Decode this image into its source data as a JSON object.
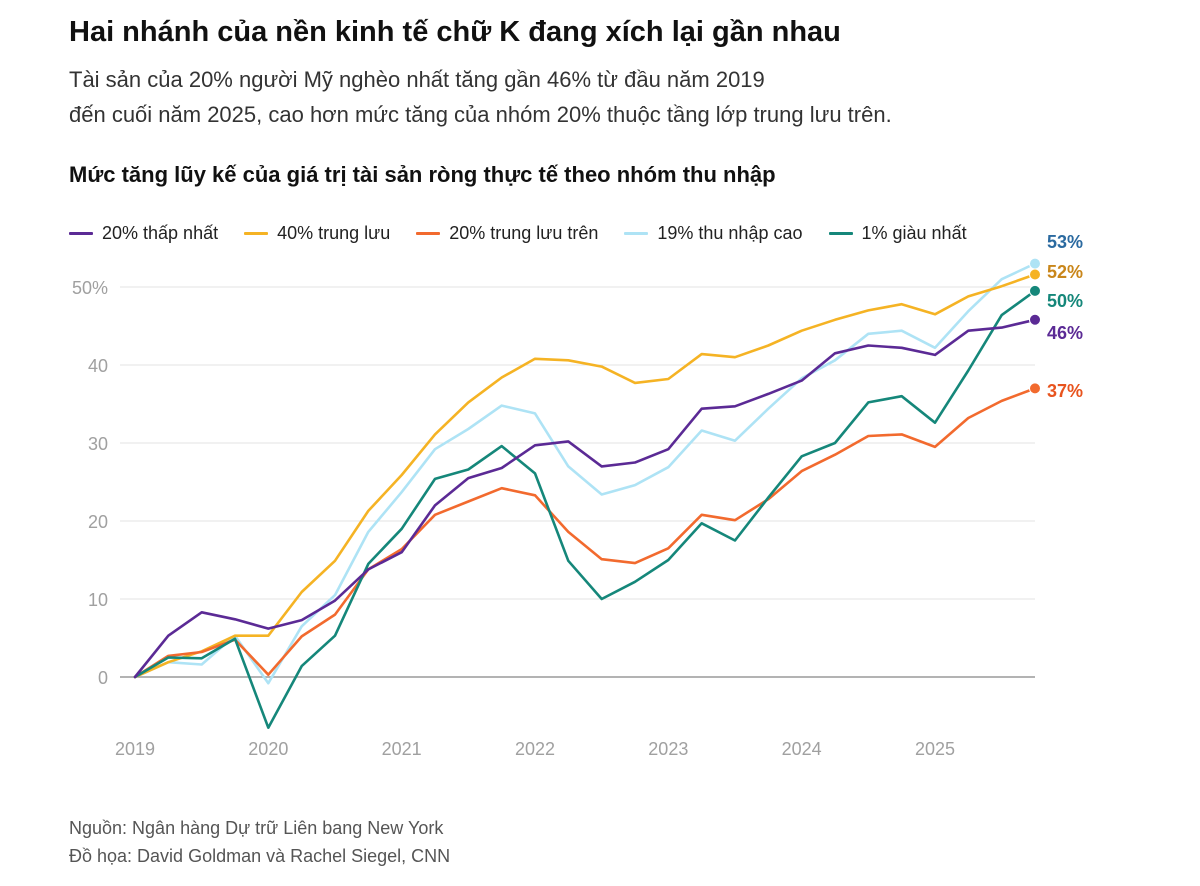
{
  "title": "Hai nhánh của nền kinh tế chữ K đang xích lại gần nhau",
  "subtitle_line1": "Tài sản của 20% người Mỹ nghèo nhất tăng gần 46% từ đầu năm 2019",
  "subtitle_line2": "đến cuối năm 2025, cao hơn mức tăng của nhóm 20% thuộc tầng lớp trung lưu trên.",
  "source_line1": "Nguồn: Ngân hàng Dự trữ Liên bang New York",
  "source_line2": "Đồ họa: David Goldman và Rachel Siegel, CNN",
  "chart_data": {
    "type": "line",
    "title": "Mức tăng lũy kế của giá trị tài sản ròng thực tế theo nhóm thu nhập",
    "xlabel": "",
    "ylabel": "",
    "ylim": [
      -7,
      53
    ],
    "xlim": [
      2019,
      2025.75
    ],
    "grid": true,
    "legend_position": "top",
    "x_ticks": [
      2019,
      2020,
      2021,
      2022,
      2023,
      2024,
      2025
    ],
    "x_tick_labels": [
      "2019",
      "2020",
      "2021",
      "2022",
      "2023",
      "2024",
      "2025"
    ],
    "y_ticks": [
      0,
      10,
      20,
      30,
      40,
      50
    ],
    "y_tick_labels": [
      "0",
      "10",
      "20",
      "30",
      "40",
      "50%"
    ],
    "x": [
      2019.0,
      2019.25,
      2019.5,
      2019.75,
      2020.0,
      2020.25,
      2020.5,
      2020.75,
      2021.0,
      2021.25,
      2021.5,
      2021.75,
      2022.0,
      2022.25,
      2022.5,
      2022.75,
      2023.0,
      2023.25,
      2023.5,
      2023.75,
      2024.0,
      2024.25,
      2024.5,
      2024.75,
      2025.0,
      2025.25,
      2025.5,
      2025.75
    ],
    "series": [
      {
        "name": "20% thấp nhất",
        "color": "#5b2a95",
        "end_label": "46%",
        "values": [
          0,
          5.3,
          8.3,
          7.4,
          6.2,
          7.3,
          9.8,
          13.8,
          16.0,
          22.0,
          25.5,
          26.8,
          29.7,
          30.2,
          27.0,
          27.5,
          29.2,
          34.4,
          34.7,
          36.3,
          38.0,
          41.5,
          42.5,
          42.2,
          41.3,
          44.4,
          44.8,
          45.8
        ]
      },
      {
        "name": "40% trung lưu",
        "color": "#f5b324",
        "end_label": "52%",
        "values": [
          0,
          1.9,
          3.3,
          5.3,
          5.3,
          10.9,
          14.9,
          21.3,
          25.9,
          31.1,
          35.2,
          38.4,
          40.8,
          40.6,
          39.8,
          37.7,
          38.2,
          41.4,
          41.0,
          42.5,
          44.4,
          45.8,
          47.0,
          47.8,
          46.5,
          48.8,
          50.1,
          51.6
        ]
      },
      {
        "name": "20% trung lưu trên",
        "color": "#f26a2e",
        "end_label": "37%",
        "values": [
          0,
          2.7,
          3.2,
          4.8,
          0.3,
          5.2,
          8.0,
          13.8,
          16.4,
          20.8,
          22.5,
          24.2,
          23.3,
          18.6,
          15.1,
          14.6,
          16.5,
          20.8,
          20.1,
          22.8,
          26.4,
          28.5,
          30.9,
          31.1,
          29.5,
          33.2,
          35.4,
          37.0
        ]
      },
      {
        "name": "19% thu nhập cao",
        "color": "#aee3f5",
        "end_label": "53%",
        "values": [
          0,
          1.9,
          1.6,
          5.3,
          -0.8,
          6.5,
          10.5,
          18.6,
          23.7,
          29.2,
          31.8,
          34.8,
          33.8,
          27.0,
          23.4,
          24.6,
          26.9,
          31.6,
          30.3,
          34.4,
          38.3,
          40.6,
          44.0,
          44.4,
          42.2,
          46.9,
          51.0,
          53.0
        ]
      },
      {
        "name": "1% giàu nhất",
        "color": "#15877a",
        "end_label": "50%",
        "values": [
          0,
          2.5,
          2.4,
          4.9,
          -6.5,
          1.4,
          5.3,
          14.5,
          19.0,
          25.4,
          26.6,
          29.6,
          26.1,
          14.9,
          10.0,
          12.2,
          15.0,
          19.7,
          17.5,
          23.0,
          28.3,
          30.0,
          35.2,
          36.0,
          32.6,
          39.3,
          46.4,
          49.5
        ]
      }
    ],
    "end_label_colors": {
      "20% thấp nhất": "#5b2a95",
      "40% trung lưu": "#c9861a",
      "20% trung lưu trên": "#e8541e",
      "19% thu nhập cao": "#2b6aa0",
      "1% giàu nhất": "#15877a"
    }
  }
}
